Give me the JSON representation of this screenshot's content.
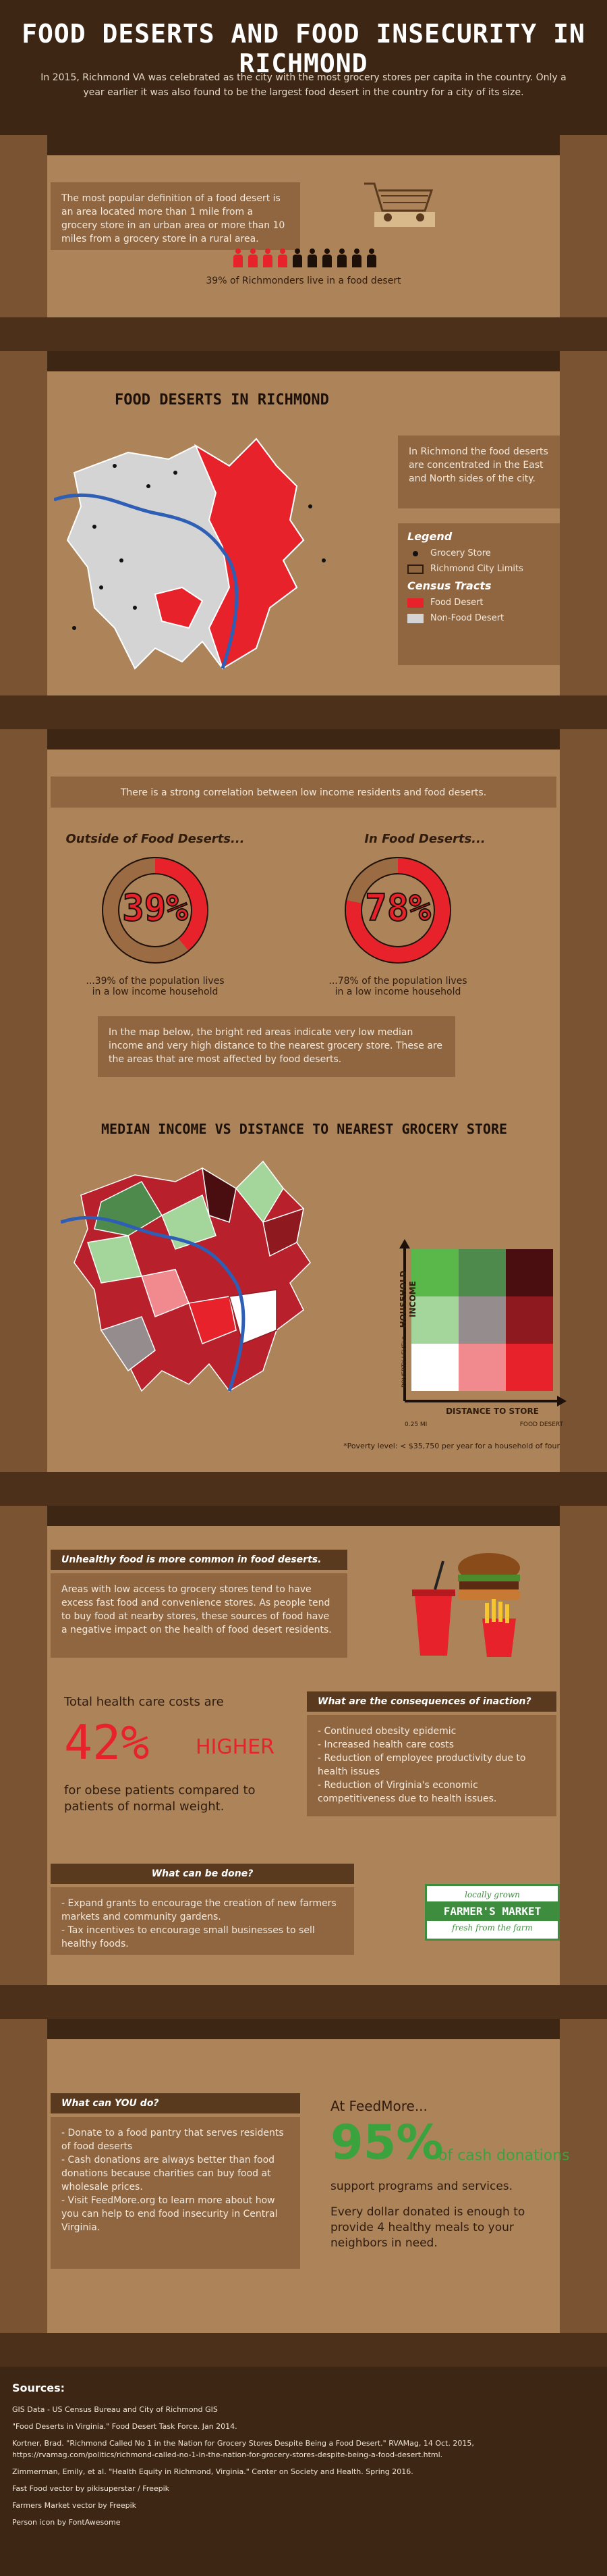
{
  "header": {
    "title": "FOOD DESERTS AND FOOD INSECURITY IN RICHMOND",
    "subtitle": "In 2015, Richmond VA was celebrated as the city with the most grocery stores per capita in the country. Only a year earlier it was also found to be the largest food desert in the country for a city of its size."
  },
  "definition": {
    "text": "The most popular definition of a food desert is an area located more than 1 mile from a grocery store in an urban area or more than 10 miles from a grocery store in a rural area.",
    "people_total": 10,
    "people_highlighted": 4,
    "stat_text": "39% of Richmonders live in a food desert",
    "icon": "shopping-cart-icon"
  },
  "map_section": {
    "title": "FOOD DESERTS IN RICHMOND",
    "note": "In Richmond the food deserts are concentrated in the East and North sides of the city.",
    "legend_title": "Legend",
    "legend_items": [
      {
        "label": "Grocery Store",
        "icon": "dot-icon"
      },
      {
        "label": "Richmond City Limits",
        "icon": "outline-box-icon"
      }
    ],
    "census_title": "Census Tracts",
    "census_items": [
      {
        "label": "Food Desert",
        "color": "#e7222a"
      },
      {
        "label": "Non-Food Desert",
        "color": "#d4d4d4"
      }
    ]
  },
  "income_section": {
    "correlation_text": "There is a strong correlation between low income residents and food deserts.",
    "outside_title": "Outside of Food Deserts...",
    "inside_title": "In Food Deserts...",
    "outside_value": "39%",
    "inside_value": "78%",
    "outside_fraction": 0.39,
    "inside_fraction": 0.78,
    "outside_caption": "...39% of the population lives in a low income household",
    "inside_caption": "...78% of the population lives in a low income household",
    "map_note": "In the map below, the bright red areas indicate very low median income and very high distance to the nearest grocery store. These are the areas that are most affected by food deserts.",
    "chart_title": "MEDIAN INCOME VS DISTANCE TO NEAREST GROCERY STORE",
    "y_axis": "HOUSEHOLD INCOME",
    "y_low": "POVERTY LEVEL*",
    "x_axis": "DISTANCE TO STORE",
    "x_low": "0.25 MI",
    "x_high": "FOOD DESERT",
    "footnote": "*Poverty level: < $35,750 per year for a household of four",
    "matrix_colors": [
      [
        "#5ab84b",
        "#4e8a4c",
        "#4a0d10"
      ],
      [
        "#a4d69c",
        "#958d8d",
        "#8e1a20"
      ],
      [
        "#ffffff",
        "#f08a8f",
        "#e7222a"
      ]
    ]
  },
  "health_section": {
    "unhealthy_head": "Unhealthy food is more common in food deserts.",
    "unhealthy_text": "Areas with low access to grocery stores tend to have excess fast food and convenience stores. As people tend to buy food at nearby stores, these sources of food have a negative impact on the health of food desert residents.",
    "cost_intro": "Total health care costs are",
    "cost_value": "42%",
    "cost_word": "HIGHER",
    "cost_outro": "for obese patients compared to patients of normal weight.",
    "consequences_head": "What are the consequences of inaction?",
    "consequences": [
      "- Continued obesity epidemic",
      "- Increased health care costs",
      "- Reduction of employee productivity due to health issues",
      "- Reduction of Virginia's economic competitiveness due to health issues."
    ],
    "done_head": "What can be done?",
    "done_items": [
      "- Expand grants to encourage the creation of new farmers markets and community gardens.",
      "- Tax incentives to encourage small businesses to sell healthy foods."
    ],
    "market_top": "locally grown",
    "market_main": "FARMER'S MARKET",
    "market_bottom": "fresh from the farm",
    "food_icon": "fast-food-icon"
  },
  "action_section": {
    "you_head": "What can YOU do?",
    "you_items": [
      "- Donate to a food pantry that serves residents of food deserts",
      "- Cash donations are always better than food donations because charities can buy food at wholesale prices.",
      "- Visit FeedMore.org to learn more about how you can help to end food insecurity in Central Virginia."
    ],
    "feedmore_intro": "At FeedMore...",
    "feedmore_value": "95%",
    "feedmore_of": "of cash donations",
    "feedmore_line": "support programs and services.",
    "feedmore_meals": "Every dollar donated is enough to provide 4 healthy meals to your neighbors in need."
  },
  "sources": {
    "title": "Sources:",
    "items": [
      "GIS Data - US Census Bureau and City of Richmond GIS",
      "\"Food Deserts in Virginia.\" Food Desert Task Force. Jan 2014.",
      "Kortner, Brad. \"Richmond Called No 1 in the Nation for Grocery Stores Despite Being a Food Desert.\" RVAMag, 14 Oct. 2015, https://rvamag.com/politics/richmond-called-no-1-in-the-nation-for-grocery-stores-despite-being-a-food-desert.html.",
      "Zimmerman, Emily, et al. \"Health Equity in Richmond, Virginia.\" Center on Society and Health. Spring 2016.",
      "Fast Food vector by pikisuperstar / Freepik",
      "Farmers Market vector by Freepik",
      "Person icon by FontAwesome"
    ]
  }
}
